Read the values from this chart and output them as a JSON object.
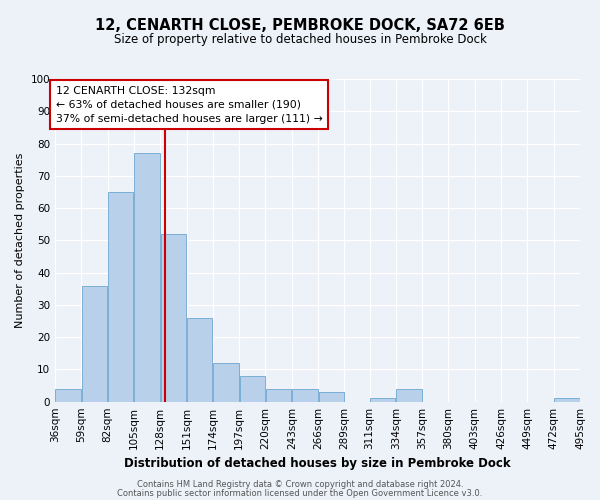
{
  "title": "12, CENARTH CLOSE, PEMBROKE DOCK, SA72 6EB",
  "subtitle": "Size of property relative to detached houses in Pembroke Dock",
  "xlabel": "Distribution of detached houses by size in Pembroke Dock",
  "ylabel": "Number of detached properties",
  "bins": [
    36,
    59,
    82,
    105,
    128,
    151,
    174,
    197,
    220,
    243,
    266,
    289,
    311,
    334,
    357,
    380,
    403,
    426,
    449,
    472,
    495
  ],
  "counts": [
    4,
    36,
    65,
    77,
    52,
    26,
    12,
    8,
    4,
    4,
    3,
    0,
    1,
    4,
    0,
    0,
    0,
    0,
    0,
    1
  ],
  "bar_color": "#b8d0ea",
  "bar_edge_color": "#7aafd4",
  "property_line_x": 132,
  "property_line_color": "#cc0000",
  "annotation_line1": "12 CENARTH CLOSE: 132sqm",
  "annotation_line2": "← 63% of detached houses are smaller (190)",
  "annotation_line3": "37% of semi-detached houses are larger (111) →",
  "annotation_box_color": "#ffffff",
  "annotation_box_edge": "#cc0000",
  "ylim": [
    0,
    100
  ],
  "tick_labels": [
    "36sqm",
    "59sqm",
    "82sqm",
    "105sqm",
    "128sqm",
    "151sqm",
    "174sqm",
    "197sqm",
    "220sqm",
    "243sqm",
    "266sqm",
    "289sqm",
    "311sqm",
    "334sqm",
    "357sqm",
    "380sqm",
    "403sqm",
    "426sqm",
    "449sqm",
    "472sqm",
    "495sqm"
  ],
  "footer1": "Contains HM Land Registry data © Crown copyright and database right 2024.",
  "footer2": "Contains public sector information licensed under the Open Government Licence v3.0.",
  "bg_color": "#edf2f9",
  "grid_color": "#ffffff",
  "title_fontsize": 10.5,
  "subtitle_fontsize": 8.5
}
